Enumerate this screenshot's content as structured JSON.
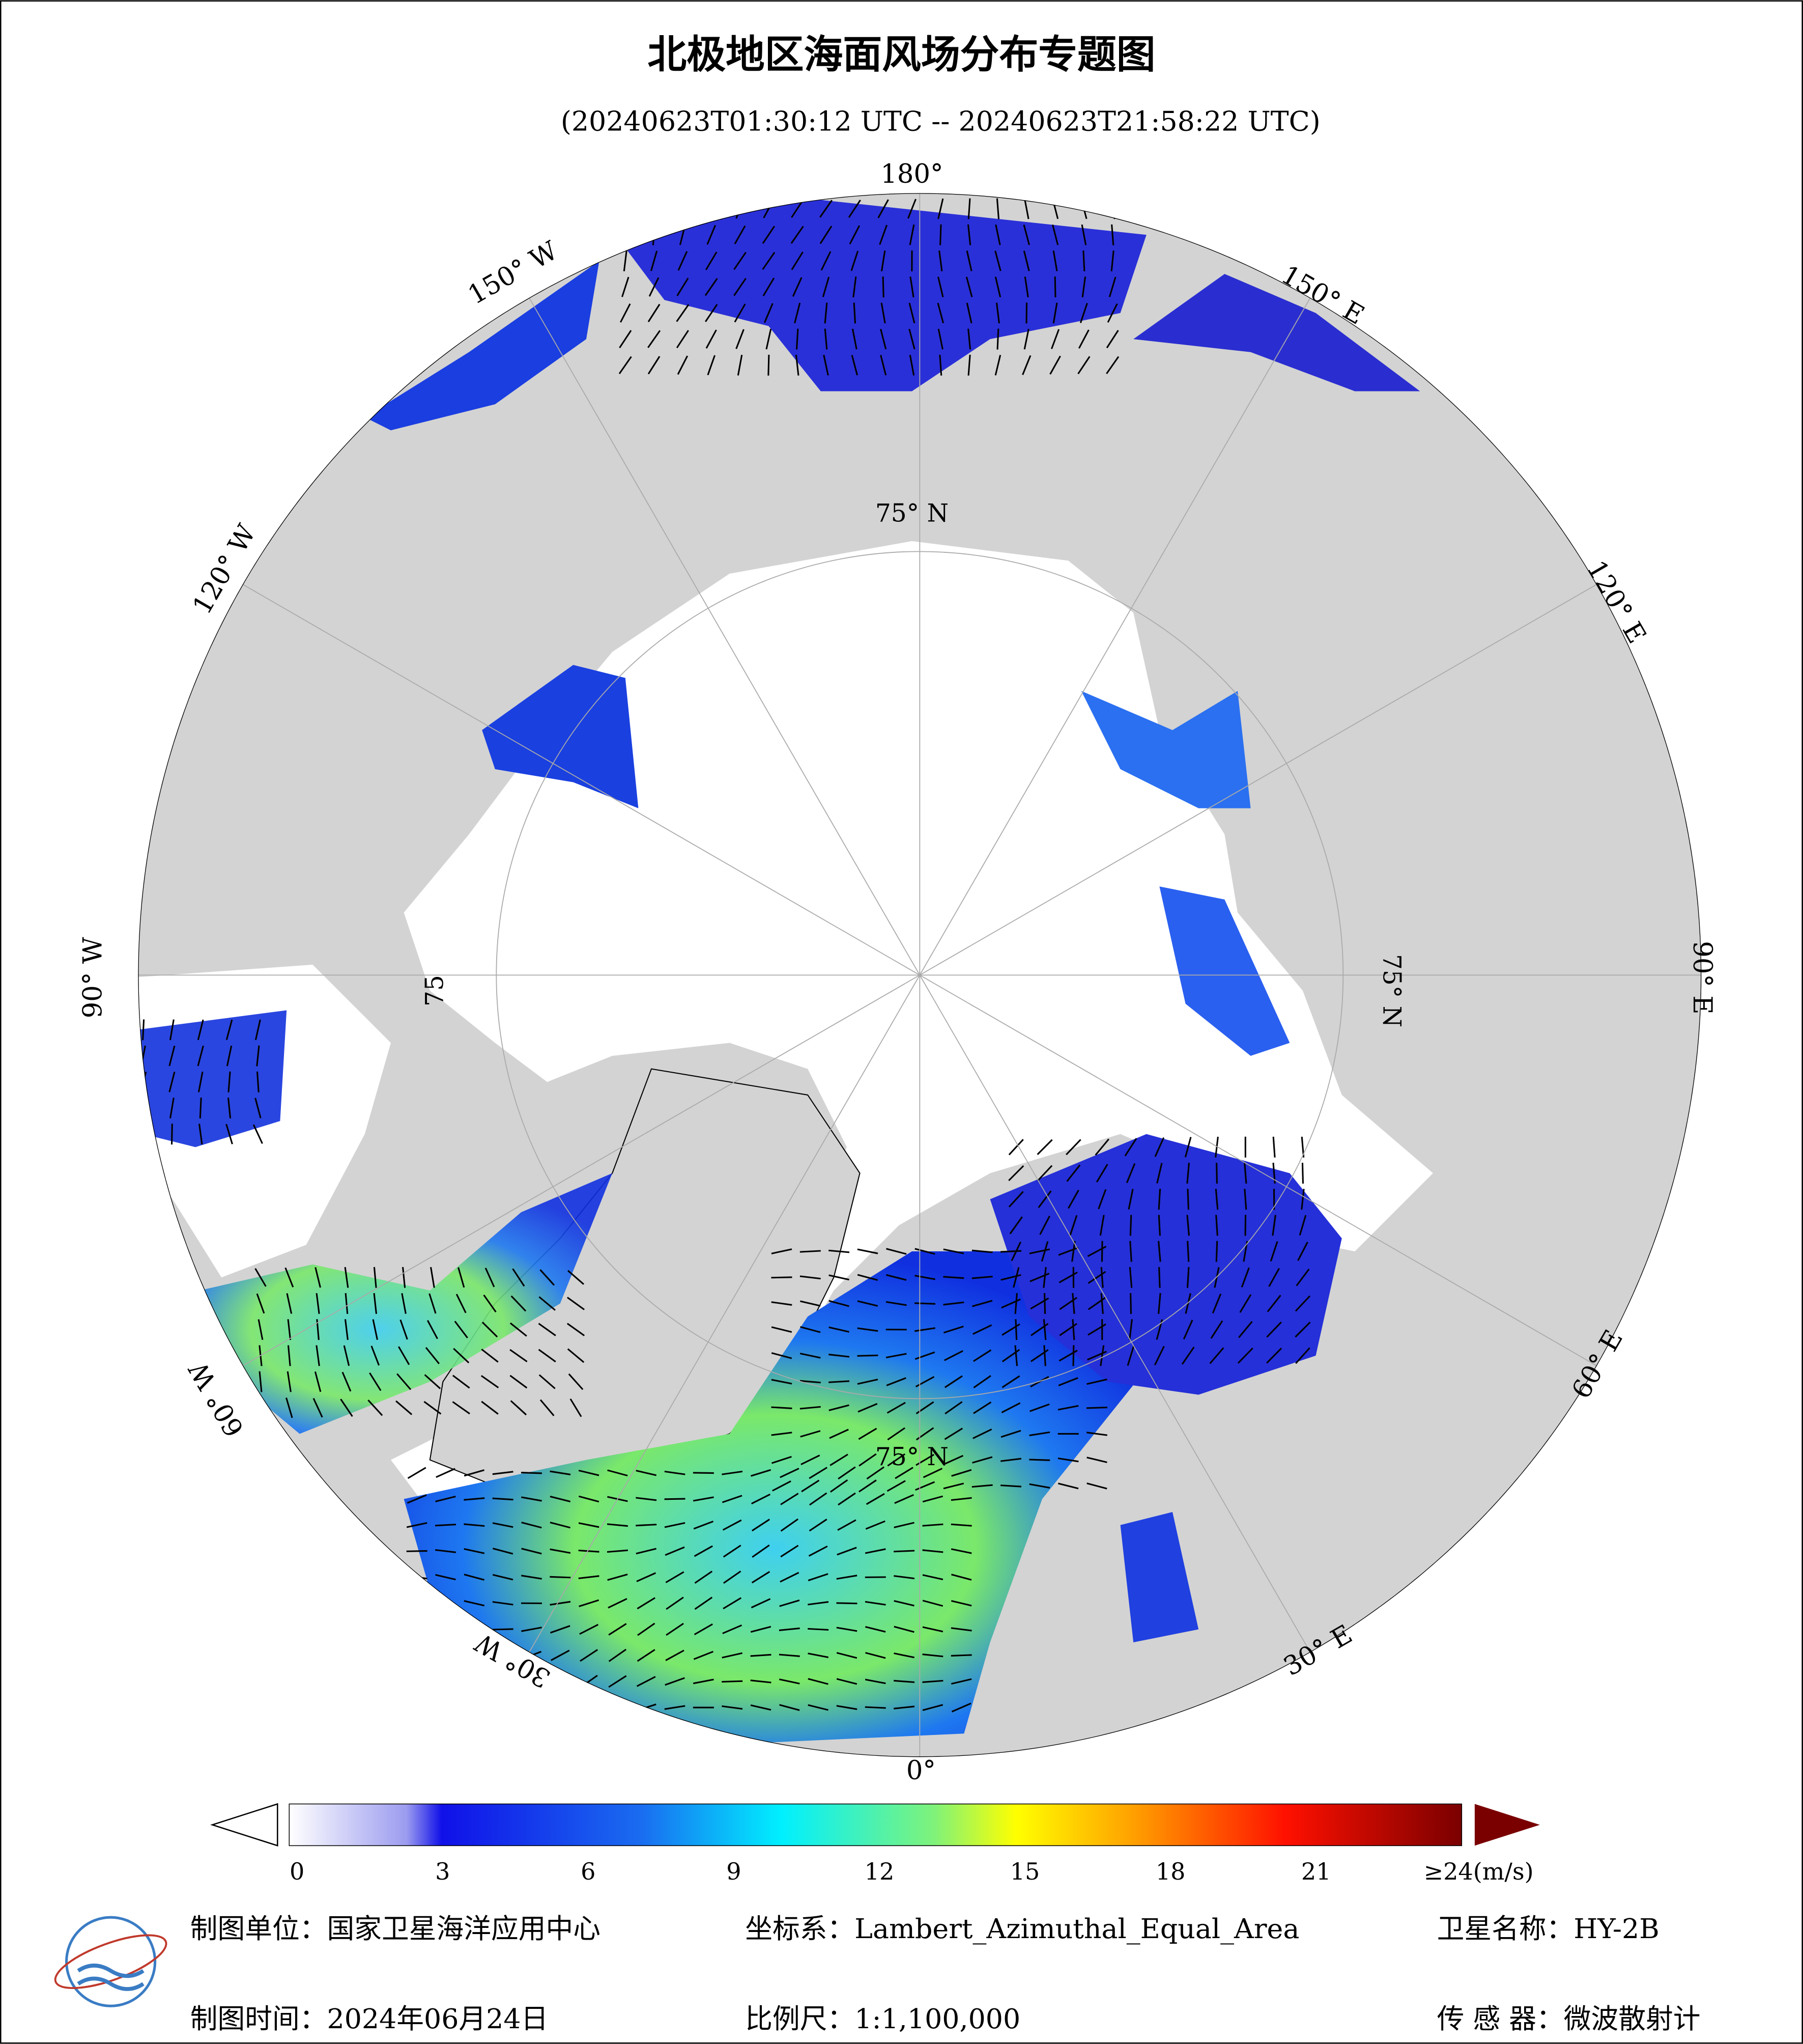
{
  "map": {
    "title": "北极地区海面风场分布专题图",
    "time_range": "(20240623T01:30:12 UTC -- 20240623T21:58:22 UTC)",
    "lon_labels": [
      "180°",
      "150° E",
      "120° E",
      "90° E",
      "60° E",
      "30° E",
      "0°",
      "30° W",
      "60° W",
      "90° W",
      "120° W",
      "150° W"
    ],
    "lat_label": "75° N",
    "lat_label_partial": "75"
  },
  "legend": {
    "ticks": [
      0,
      3,
      6,
      9,
      12,
      15,
      18,
      21
    ],
    "max_label": "≥24(m/s)"
  },
  "footer": {
    "unit": "制图单位：国家卫星海洋应用中心",
    "crs": "坐标系：Lambert_Azimuthal_Equal_Area",
    "satellite": "卫星名称：HY-2B",
    "date": "制图时间：2024年06月24日",
    "scale": "比例尺：1:1,100,000",
    "sensor": "传 感 器：微波散射计"
  }
}
